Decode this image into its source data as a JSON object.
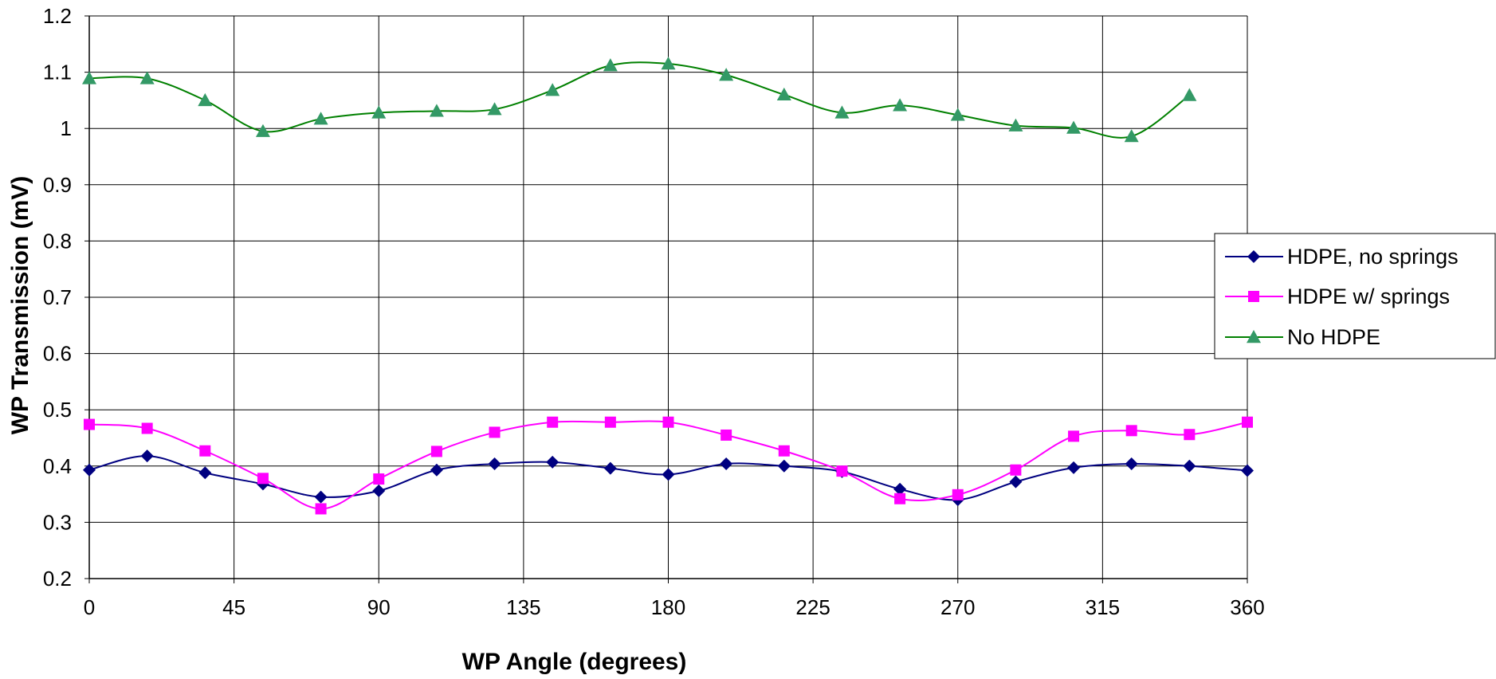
{
  "chart_data": {
    "type": "line",
    "xlabel": "WP Angle (degrees)",
    "ylabel": "WP Transmission (mV)",
    "xlim": [
      0,
      360
    ],
    "ylim": [
      0.2,
      1.2
    ],
    "xticks": [
      "0",
      "45",
      "90",
      "135",
      "180",
      "225",
      "270",
      "315",
      "360"
    ],
    "yticks": [
      "0.2",
      "0.3",
      "0.4",
      "0.5",
      "0.6",
      "0.7",
      "0.8",
      "0.9",
      "1",
      "1.1",
      "1.2"
    ],
    "grid": true,
    "smoothed": true,
    "legend_position": "right",
    "series": [
      {
        "name": "HDPE, no springs",
        "color": "#000080",
        "marker": "diamond",
        "x": [
          0,
          18,
          36,
          54,
          72,
          90,
          108,
          126,
          144,
          162,
          180,
          198,
          216,
          234,
          252,
          270,
          288,
          306,
          324,
          342,
          360
        ],
        "values": [
          0.393,
          0.418,
          0.388,
          0.368,
          0.345,
          0.356,
          0.393,
          0.404,
          0.407,
          0.396,
          0.385,
          0.404,
          0.4,
          0.39,
          0.359,
          0.34,
          0.372,
          0.397,
          0.404,
          0.4,
          0.392
        ]
      },
      {
        "name": "HDPE w/ springs",
        "color": "#ff00ff",
        "marker": "square",
        "x": [
          0,
          18,
          36,
          54,
          72,
          90,
          108,
          126,
          144,
          162,
          180,
          198,
          216,
          234,
          252,
          270,
          288,
          306,
          324,
          342,
          360
        ],
        "values": [
          0.474,
          0.467,
          0.427,
          0.378,
          0.324,
          0.377,
          0.426,
          0.46,
          0.478,
          0.478,
          0.478,
          0.455,
          0.427,
          0.391,
          0.342,
          0.349,
          0.393,
          0.453,
          0.463,
          0.456,
          0.478
        ]
      },
      {
        "name": "No HDPE",
        "color": "#008000",
        "marker_color": "#339966",
        "marker": "triangle",
        "x": [
          0,
          18,
          36,
          54,
          72,
          90,
          108,
          126,
          144,
          162,
          180,
          198,
          216,
          234,
          252,
          270,
          288,
          306,
          324,
          342
        ],
        "values": [
          1.089,
          1.089,
          1.05,
          0.995,
          1.017,
          1.028,
          1.031,
          1.034,
          1.068,
          1.112,
          1.115,
          1.095,
          1.06,
          1.028,
          1.041,
          1.024,
          1.005,
          1.001,
          0.986,
          1.059
        ]
      }
    ]
  }
}
